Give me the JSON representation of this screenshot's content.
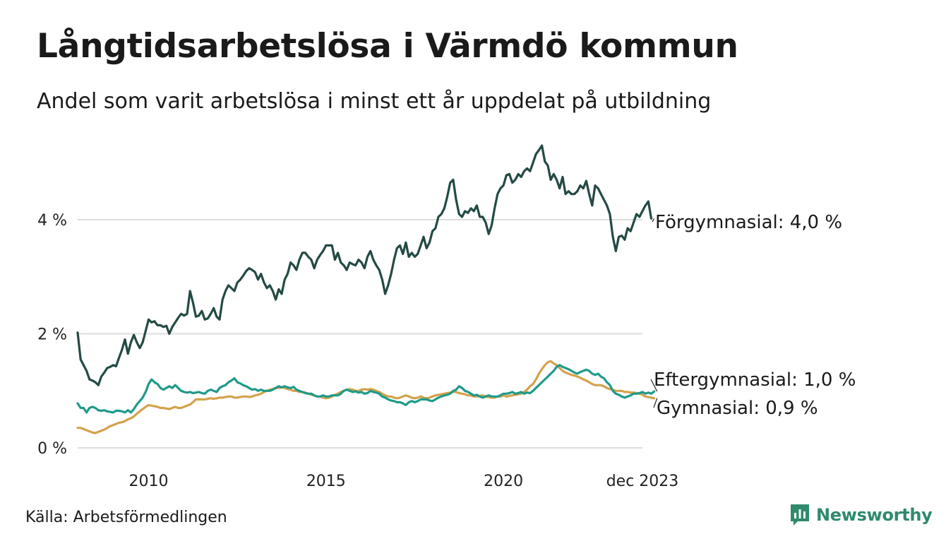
{
  "title": "Långtidsarbetslösa i Värmdö kommun",
  "subtitle": "Andel som varit arbetslösa i minst ett år uppdelat på utbildning",
  "source": "Källa: Arbetsförmedlingen",
  "brand": "Newsworthy",
  "icons": {
    "brand_logo": "newsworthy-logo-icon"
  },
  "colors": {
    "forgymnasial": "#234a44",
    "eftergymnasial": "#1f9a8a",
    "gymnasial": "#d2a24c",
    "grid": "#dddddd",
    "brand": "#2f8a6e"
  },
  "chart_data": {
    "type": "line",
    "title": "Långtidsarbetslösa i Värmdö kommun",
    "subtitle": "Andel som varit arbetslösa i minst ett år uppdelat på utbildning",
    "x_start": 2008.0,
    "x_step": 0.0833333,
    "xlim": [
      2008.0,
      2023.917
    ],
    "ylim": [
      0,
      5.4
    ],
    "y_ticks": [
      {
        "value": 0,
        "label": "0 %"
      },
      {
        "value": 2,
        "label": "2 %"
      },
      {
        "value": 4,
        "label": "4 %"
      }
    ],
    "x_ticks": [
      {
        "value": 2010,
        "label": "2010"
      },
      {
        "value": 2015,
        "label": "2015"
      },
      {
        "value": 2020,
        "label": "2020"
      },
      {
        "value": 2023.917,
        "label": "dec 2023"
      }
    ],
    "series": [
      {
        "name": "Förgymnasial",
        "end_label": "Förgymnasial: 4,0 %",
        "values": [
          2.02,
          1.55,
          1.45,
          1.35,
          1.2,
          1.18,
          1.15,
          1.1,
          1.25,
          1.32,
          1.4,
          1.42,
          1.45,
          1.43,
          1.58,
          1.72,
          1.9,
          1.65,
          1.85,
          1.98,
          1.85,
          1.75,
          1.85,
          2.05,
          2.25,
          2.2,
          2.22,
          2.15,
          2.15,
          2.12,
          2.14,
          2.0,
          2.12,
          2.2,
          2.28,
          2.35,
          2.32,
          2.35,
          2.75,
          2.55,
          2.3,
          2.32,
          2.4,
          2.25,
          2.27,
          2.35,
          2.45,
          2.3,
          2.25,
          2.6,
          2.75,
          2.85,
          2.8,
          2.75,
          2.9,
          2.95,
          3.02,
          3.1,
          3.15,
          3.12,
          3.08,
          2.95,
          3.05,
          2.9,
          2.8,
          2.85,
          2.75,
          2.6,
          2.78,
          2.7,
          2.95,
          3.05,
          3.25,
          3.2,
          3.12,
          3.3,
          3.42,
          3.42,
          3.35,
          3.3,
          3.15,
          3.3,
          3.38,
          3.45,
          3.55,
          3.55,
          3.55,
          3.3,
          3.42,
          3.25,
          3.2,
          3.12,
          3.25,
          3.22,
          3.2,
          3.3,
          3.25,
          3.15,
          3.35,
          3.45,
          3.3,
          3.2,
          3.12,
          2.95,
          2.7,
          2.85,
          3.05,
          3.3,
          3.5,
          3.55,
          3.4,
          3.6,
          3.35,
          3.42,
          3.35,
          3.4,
          3.55,
          3.7,
          3.5,
          3.6,
          3.8,
          3.85,
          4.05,
          4.1,
          4.2,
          4.4,
          4.65,
          4.7,
          4.35,
          4.1,
          4.05,
          4.15,
          4.12,
          4.2,
          4.15,
          4.25,
          4.05,
          4.05,
          3.95,
          3.75,
          3.9,
          4.2,
          4.45,
          4.55,
          4.6,
          4.78,
          4.8,
          4.65,
          4.7,
          4.8,
          4.75,
          4.85,
          4.9,
          4.85,
          5.0,
          5.15,
          5.22,
          5.3,
          5.02,
          4.95,
          4.7,
          4.8,
          4.7,
          4.55,
          4.75,
          4.45,
          4.5,
          4.45,
          4.45,
          4.5,
          4.6,
          4.55,
          4.68,
          4.45,
          4.25,
          4.6,
          4.55,
          4.45,
          4.35,
          4.25,
          4.1,
          3.7,
          3.45,
          3.7,
          3.72,
          3.65,
          3.85,
          3.8,
          3.95,
          4.1,
          4.05,
          4.15,
          4.25,
          4.32,
          4.02
        ]
      },
      {
        "name": "Eftergymnasial",
        "end_label": "Eftergymnasial: 1,0 %",
        "values": [
          0.78,
          0.7,
          0.7,
          0.62,
          0.7,
          0.72,
          0.7,
          0.66,
          0.65,
          0.66,
          0.64,
          0.63,
          0.62,
          0.65,
          0.65,
          0.64,
          0.62,
          0.66,
          0.62,
          0.68,
          0.76,
          0.82,
          0.88,
          0.98,
          1.12,
          1.2,
          1.15,
          1.12,
          1.05,
          1.02,
          1.05,
          1.08,
          1.05,
          1.1,
          1.05,
          1.0,
          0.98,
          0.97,
          0.98,
          0.96,
          0.97,
          0.98,
          0.96,
          0.95,
          1.0,
          1.02,
          1.0,
          0.98,
          1.05,
          1.08,
          1.1,
          1.15,
          1.18,
          1.22,
          1.15,
          1.13,
          1.1,
          1.08,
          1.05,
          1.02,
          1.03,
          1.0,
          1.02,
          1.0,
          1.0,
          1.0,
          1.02,
          1.05,
          1.08,
          1.06,
          1.08,
          1.06,
          1.05,
          1.07,
          1.02,
          1.0,
          0.98,
          0.96,
          0.95,
          0.95,
          0.92,
          0.9,
          0.9,
          0.92,
          0.9,
          0.9,
          0.92,
          0.92,
          0.92,
          0.95,
          1.0,
          1.02,
          1.0,
          0.98,
          0.99,
          0.97,
          0.98,
          0.95,
          0.96,
          1.0,
          0.98,
          0.97,
          0.95,
          0.9,
          0.88,
          0.85,
          0.83,
          0.82,
          0.8,
          0.8,
          0.78,
          0.75,
          0.8,
          0.82,
          0.8,
          0.82,
          0.85,
          0.85,
          0.85,
          0.83,
          0.82,
          0.85,
          0.88,
          0.9,
          0.92,
          0.93,
          0.95,
          1.0,
          1.02,
          1.08,
          1.05,
          1.0,
          0.98,
          0.95,
          0.92,
          0.93,
          0.9,
          0.88,
          0.9,
          0.92,
          0.9,
          0.9,
          0.9,
          0.92,
          0.95,
          0.95,
          0.96,
          0.98,
          0.95,
          0.96,
          0.98,
          0.95,
          0.97,
          0.96,
          1.0,
          1.05,
          1.1,
          1.15,
          1.2,
          1.25,
          1.3,
          1.35,
          1.42,
          1.45,
          1.42,
          1.4,
          1.38,
          1.35,
          1.32,
          1.3,
          1.33,
          1.35,
          1.37,
          1.35,
          1.3,
          1.28,
          1.3,
          1.25,
          1.22,
          1.15,
          1.1,
          1.0,
          0.95,
          0.93,
          0.9,
          0.88,
          0.9,
          0.92,
          0.95,
          0.95,
          0.96,
          0.98,
          0.95,
          0.97,
          0.95,
          0.99
        ]
      },
      {
        "name": "Gymnasial",
        "end_label": "Gymnasial: 0,9 %",
        "values": [
          0.35,
          0.35,
          0.33,
          0.31,
          0.29,
          0.27,
          0.26,
          0.28,
          0.3,
          0.32,
          0.35,
          0.38,
          0.4,
          0.42,
          0.44,
          0.45,
          0.47,
          0.5,
          0.52,
          0.55,
          0.6,
          0.64,
          0.68,
          0.72,
          0.75,
          0.74,
          0.73,
          0.72,
          0.7,
          0.7,
          0.69,
          0.68,
          0.7,
          0.72,
          0.7,
          0.7,
          0.72,
          0.74,
          0.76,
          0.8,
          0.85,
          0.85,
          0.85,
          0.85,
          0.86,
          0.87,
          0.86,
          0.87,
          0.88,
          0.88,
          0.89,
          0.9,
          0.9,
          0.88,
          0.88,
          0.89,
          0.9,
          0.9,
          0.89,
          0.9,
          0.92,
          0.93,
          0.95,
          0.98,
          1.0,
          1.02,
          1.03,
          1.05,
          1.05,
          1.06,
          1.05,
          1.03,
          1.02,
          1.0,
          1.0,
          0.98,
          0.98,
          0.97,
          0.95,
          0.93,
          0.92,
          0.9,
          0.9,
          0.88,
          0.87,
          0.88,
          0.9,
          0.93,
          0.95,
          0.98,
          1.0,
          1.02,
          1.03,
          1.02,
          1.0,
          1.0,
          1.02,
          1.03,
          1.02,
          1.03,
          1.02,
          1.0,
          0.98,
          0.95,
          0.92,
          0.9,
          0.9,
          0.88,
          0.87,
          0.88,
          0.9,
          0.92,
          0.9,
          0.88,
          0.87,
          0.88,
          0.9,
          0.88,
          0.87,
          0.88,
          0.9,
          0.92,
          0.93,
          0.94,
          0.95,
          0.96,
          0.97,
          0.98,
          0.98,
          0.96,
          0.95,
          0.94,
          0.92,
          0.92,
          0.9,
          0.9,
          0.91,
          0.92,
          0.9,
          0.89,
          0.88,
          0.88,
          0.9,
          0.9,
          0.92,
          0.9,
          0.91,
          0.92,
          0.93,
          0.94,
          0.95,
          0.98,
          1.02,
          1.08,
          1.12,
          1.2,
          1.3,
          1.38,
          1.45,
          1.5,
          1.52,
          1.48,
          1.45,
          1.4,
          1.35,
          1.32,
          1.3,
          1.28,
          1.27,
          1.25,
          1.23,
          1.2,
          1.18,
          1.15,
          1.12,
          1.1,
          1.1,
          1.1,
          1.08,
          1.05,
          1.03,
          1.02,
          1.0,
          1.0,
          1.0,
          0.98,
          0.98,
          0.97,
          0.97,
          0.96,
          0.95,
          0.93,
          0.9,
          0.89,
          0.88,
          0.87
        ]
      }
    ]
  }
}
